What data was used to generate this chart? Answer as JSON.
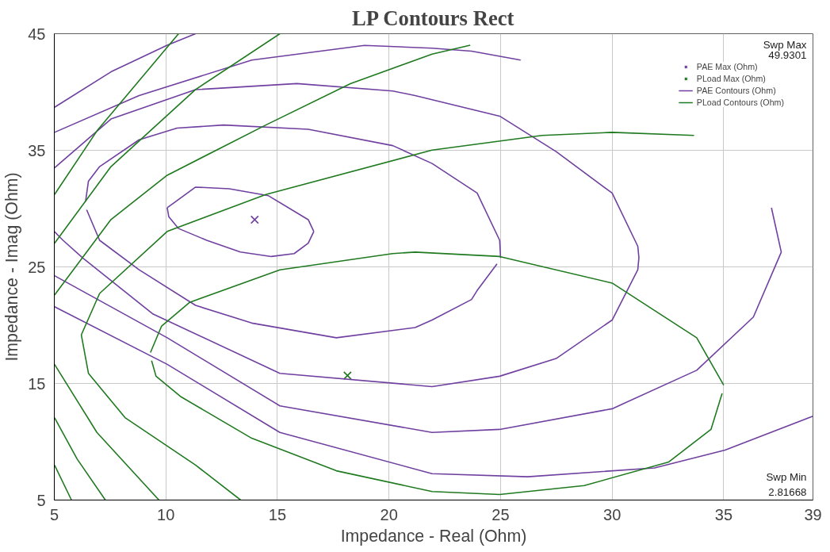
{
  "chart_data": {
    "type": "line",
    "title": "LP Contours Rect",
    "xlabel": "Impedance - Real (Ohm)",
    "ylabel": "Impedance - Imag (Ohm)",
    "xlim": [
      5,
      39
    ],
    "xticks": [
      5,
      10,
      15,
      20,
      25,
      30,
      35,
      39
    ],
    "ylim": [
      5,
      45
    ],
    "yticks": [
      5,
      15,
      25,
      35,
      45
    ],
    "grid": true,
    "legend": "right",
    "line_style": "solid",
    "annotations": [
      "Swp Max",
      "49.9301",
      "Swp Min",
      "2.81668"
    ],
    "series": [
      {
        "name": "PAE Max (Ohm)",
        "type": "scatter",
        "marker": "cross",
        "color": "#7040a0",
        "x": [
          13.98
        ],
        "values": [
          29.05
        ]
      },
      {
        "name": "PLoad Max (Ohm)",
        "type": "scatter",
        "marker": "cross",
        "color": "#207a20",
        "x": [
          18.14
        ],
        "values": [
          15.68
        ]
      },
      {
        "name": "PAE Contours (Ohm)",
        "type": "line",
        "color": "#7040a0",
        "x": [
          10.06,
          11.33,
          12.84,
          14.6,
          16.38,
          16.63
        ],
        "values": [
          30.07,
          31.84,
          31.7,
          31.1,
          29.05,
          28.04
        ]
      },
      {
        "color": "#7040a0",
        "x": [
          10.06,
          10.13,
          10.57,
          11.83,
          13.34,
          14.73,
          15.75,
          16.38,
          16.63
        ],
        "values": [
          30.07,
          29.31,
          28.29,
          27.28,
          26.27,
          25.89,
          26.14,
          27.03,
          28.04
        ]
      },
      {
        "color": "#7040a0",
        "x": [
          6.4,
          6.53,
          7.03,
          8.8,
          10.5,
          12.59,
          16.38,
          20.17,
          21.93,
          23.95,
          24.96,
          25.0
        ],
        "values": [
          30.6,
          32.35,
          33.6,
          35.9,
          36.9,
          37.17,
          36.8,
          35.4,
          33.87,
          31.33,
          27.28,
          25.76
        ]
      },
      {
        "color": "#7040a0",
        "x": [
          6.45,
          7.03,
          8.8,
          11.33,
          13.85,
          17.64,
          21.17,
          21.93,
          23.7,
          23.95,
          24.84
        ],
        "values": [
          29.9,
          27.28,
          24.75,
          21.7,
          20.18,
          18.92,
          19.8,
          20.44,
          22.2,
          22.97,
          25.25
        ]
      },
      {
        "color": "#7040a0",
        "x": [
          5.01,
          7.54,
          11.33,
          15.87,
          20.17,
          21.17,
          24.96,
          27.49,
          30.0,
          31.15,
          31.2,
          31.15,
          30.0,
          27.49,
          24.96,
          21.93,
          15.11,
          9.43,
          6.28,
          5.39,
          5.0
        ],
        "values": [
          33.5,
          37.68,
          40.2,
          40.72,
          40.08,
          39.7,
          37.93,
          34.89,
          31.33,
          26.77,
          25.8,
          24.75,
          20.44,
          17.14,
          15.62,
          14.73,
          15.87,
          20.95,
          25.76,
          27.28,
          28.04
        ]
      },
      {
        "color": "#7040a0",
        "x": [
          5.01,
          8.8,
          13.85,
          18.9,
          21.93,
          23.7,
          25.9
        ],
        "values": [
          36.54,
          39.7,
          42.74,
          44.0,
          43.76,
          43.5,
          42.74
        ]
      },
      {
        "color": "#7040a0",
        "x": [
          5.01,
          10.06,
          15.11,
          21.93,
          24.96,
          30.0,
          33.79,
          36.33,
          37.58,
          37.14
        ],
        "values": [
          24.24,
          18.92,
          13.08,
          10.8,
          11.06,
          12.83,
          16.13,
          20.7,
          26.27,
          30.07
        ]
      },
      {
        "color": "#7040a0",
        "x": [
          5.01,
          7.54,
          10.06,
          11.33
        ],
        "values": [
          38.69,
          41.73,
          44.01,
          45.0
        ]
      },
      {
        "color": "#7040a0",
        "x": [
          5.01,
          10.06,
          15.11,
          21.93,
          26.22,
          31.9,
          35.06,
          39.0
        ],
        "values": [
          21.58,
          16.64,
          10.8,
          7.26,
          7.0,
          7.76,
          9.29,
          12.2
        ]
      },
      {
        "name": "PLoad Contours (Ohm)",
        "type": "line",
        "color": "#207a20",
        "x": [
          9.31,
          9.81,
          11.07,
          15.11,
          20.16,
          21.17,
          24.96,
          30.0,
          33.79,
          35.0
        ],
        "values": [
          17.65,
          19.93,
          21.96,
          24.75,
          26.14,
          26.27,
          25.89,
          23.61,
          18.92,
          14.86
        ]
      },
      {
        "color": "#207a20",
        "x": [
          9.36,
          9.56,
          10.69,
          13.85,
          17.64,
          21.93,
          24.96,
          28.75,
          32.54,
          34.43,
          34.93
        ],
        "values": [
          16.95,
          15.62,
          13.84,
          10.3,
          7.51,
          5.73,
          5.48,
          6.24,
          8.27,
          11.06,
          14.15
        ]
      },
      {
        "color": "#207a20",
        "x": [
          6.21,
          6.53,
          8.17,
          11.33,
          13.35
        ],
        "values": [
          19.17,
          15.87,
          12.07,
          8.0,
          5.0
        ]
      },
      {
        "color": "#207a20",
        "x": [
          6.21,
          7.03,
          10.06,
          14.48,
          21.93,
          26.86,
          30.0,
          33.67
        ],
        "values": [
          19.17,
          22.72,
          28.04,
          31.21,
          35.02,
          36.28,
          36.54,
          36.28
        ]
      },
      {
        "color": "#207a20",
        "x": [
          5.01,
          7.54,
          10.06,
          14.48,
          18.27,
          21.93,
          23.64
        ],
        "values": [
          22.59,
          29.06,
          32.86,
          37.17,
          40.72,
          43.25,
          44.01
        ]
      },
      {
        "color": "#207a20",
        "x": [
          5.01,
          7.54,
          11.33,
          15.11
        ],
        "values": [
          27.03,
          33.6,
          40.21,
          45.0
        ]
      },
      {
        "color": "#207a20",
        "x": [
          5.01,
          6.91,
          8.8,
          10.57
        ],
        "values": [
          31.21,
          36.66,
          40.97,
          45.0
        ]
      },
      {
        "color": "#207a20",
        "x": [
          5.01,
          6.91,
          9.69
        ],
        "values": [
          16.64,
          10.8,
          5.0
        ]
      },
      {
        "color": "#207a20",
        "x": [
          5.01,
          6.02,
          7.29
        ],
        "values": [
          12.07,
          8.53,
          5.0
        ]
      },
      {
        "color": "#207a20",
        "x": [
          5.01,
          5.77
        ],
        "values": [
          8.0,
          5.0
        ]
      }
    ]
  }
}
